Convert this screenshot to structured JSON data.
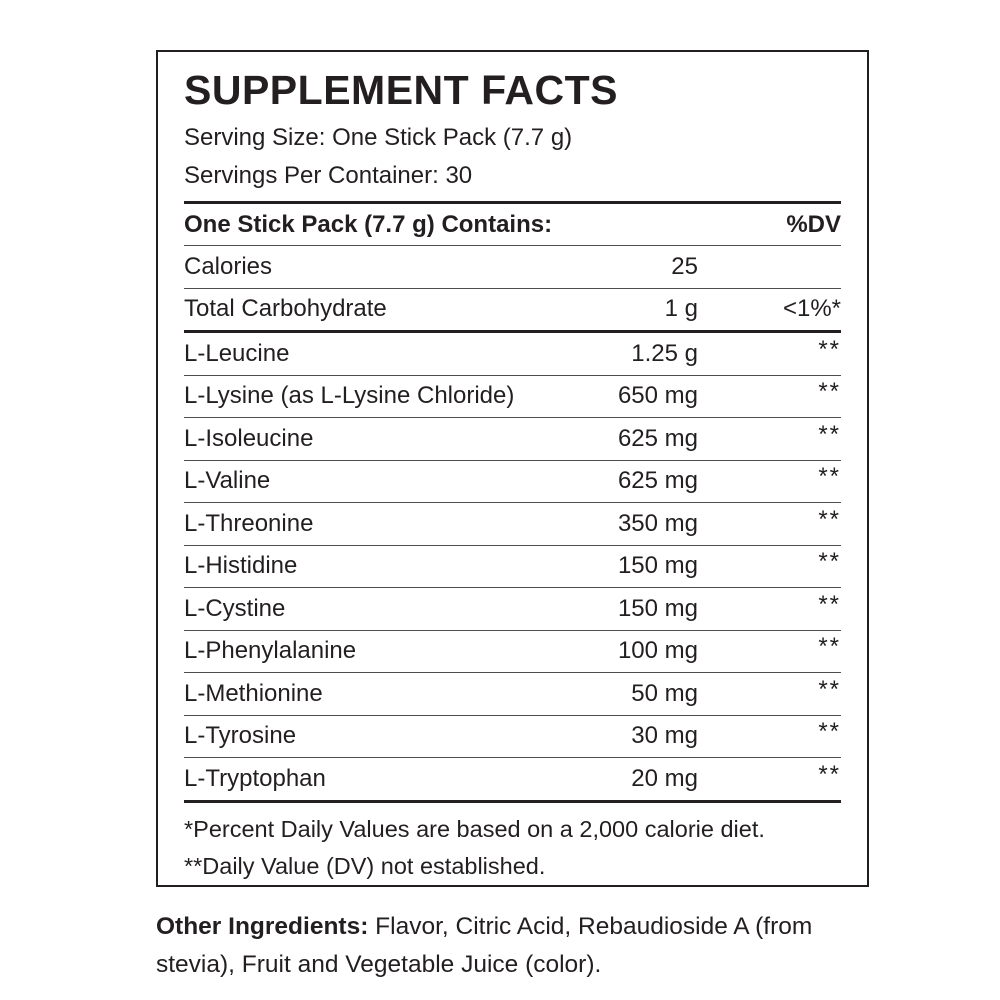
{
  "panel": {
    "title": "SUPPLEMENT FACTS",
    "serving_size": "Serving Size: One Stick Pack (7.7 g)",
    "servings_per_container": "Servings Per Container: 30",
    "table": {
      "header": {
        "name": "One Stick Pack (7.7 g) Contains:",
        "dv": "%DV"
      },
      "rows": [
        {
          "name": "Calories",
          "amount": "25",
          "dv": "",
          "rule": "thin"
        },
        {
          "name": "Total Carbohydrate",
          "amount": "1 g",
          "dv": "<1%*",
          "rule": "thin"
        },
        {
          "name": "L-Leucine",
          "amount": "1.25 g",
          "dv": "**",
          "rule": "thick"
        },
        {
          "name": "L-Lysine (as L-Lysine Chloride)",
          "amount": "650 mg",
          "dv": "**",
          "rule": "thin"
        },
        {
          "name": "L-Isoleucine",
          "amount": "625 mg",
          "dv": "**",
          "rule": "thin"
        },
        {
          "name": "L-Valine",
          "amount": "625 mg",
          "dv": "**",
          "rule": "thin"
        },
        {
          "name": "L-Threonine",
          "amount": "350 mg",
          "dv": "**",
          "rule": "thin"
        },
        {
          "name": "L-Histidine",
          "amount": "150 mg",
          "dv": "**",
          "rule": "thin"
        },
        {
          "name": "L-Cystine",
          "amount": "150 mg",
          "dv": "**",
          "rule": "thin"
        },
        {
          "name": "L-Phenylalanine",
          "amount": "100 mg",
          "dv": "**",
          "rule": "thin"
        },
        {
          "name": "L-Methionine",
          "amount": "50 mg",
          "dv": "**",
          "rule": "thin"
        },
        {
          "name": "L-Tyrosine",
          "amount": "30 mg",
          "dv": "**",
          "rule": "thin"
        },
        {
          "name": "L-Tryptophan",
          "amount": "20 mg",
          "dv": "**",
          "rule": "thin"
        }
      ]
    },
    "footnotes": [
      "*Percent Daily Values are based on a 2,000 calorie diet.",
      "**Daily Value (DV) not established."
    ]
  },
  "other_ingredients": {
    "label": "Other Ingredients:",
    "text": " Flavor, Citric Acid, Rebaudioside A (from stevia), Fruit and Vegetable Juice (color)."
  },
  "colors": {
    "text": "#231f20",
    "rule_thin": "#4d4d4d",
    "rule_thick": "#231f20",
    "background": "#ffffff"
  }
}
